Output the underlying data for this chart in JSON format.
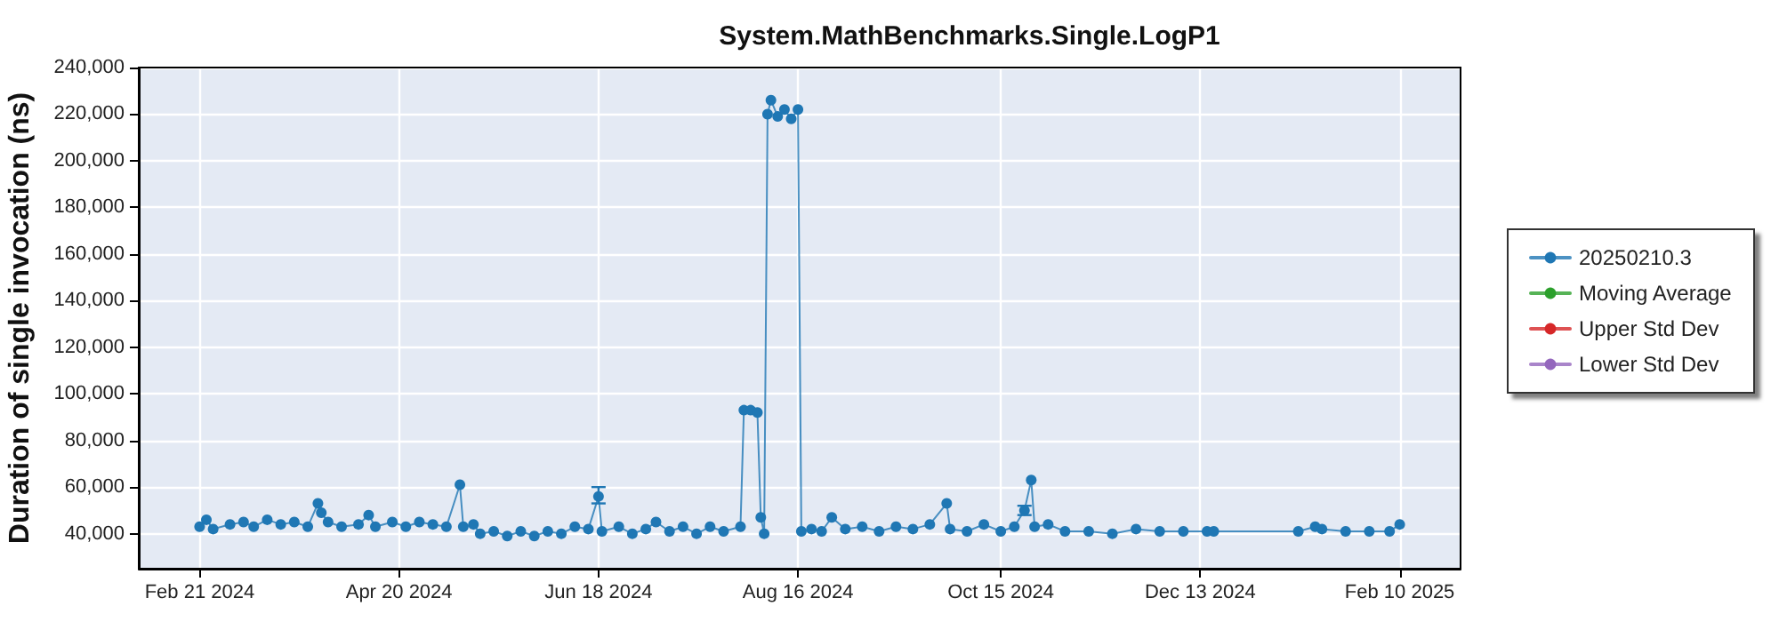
{
  "chart_data": {
    "type": "line",
    "title": "System.MathBenchmarks.Single.LogP1",
    "ylabel": "Duration of single invocation (ns)",
    "x": [
      "2024-02-21",
      "2024-02-23",
      "2024-02-25",
      "2024-03-01",
      "2024-03-05",
      "2024-03-08",
      "2024-03-12",
      "2024-03-16",
      "2024-03-20",
      "2024-03-24",
      "2024-03-27",
      "2024-03-28",
      "2024-03-30",
      "2024-04-03",
      "2024-04-08",
      "2024-04-11",
      "2024-04-13",
      "2024-04-18",
      "2024-04-22",
      "2024-04-26",
      "2024-04-30",
      "2024-05-04",
      "2024-05-08",
      "2024-05-09",
      "2024-05-12",
      "2024-05-14",
      "2024-05-18",
      "2024-05-22",
      "2024-05-26",
      "2024-05-30",
      "2024-06-03",
      "2024-06-07",
      "2024-06-11",
      "2024-06-15",
      "2024-06-18",
      "2024-06-19",
      "2024-06-24",
      "2024-06-28",
      "2024-07-02",
      "2024-07-05",
      "2024-07-09",
      "2024-07-13",
      "2024-07-17",
      "2024-07-21",
      "2024-07-25",
      "2024-07-30",
      "2024-07-31",
      "2024-08-02",
      "2024-08-04",
      "2024-08-05",
      "2024-08-06",
      "2024-08-07",
      "2024-08-08",
      "2024-08-10",
      "2024-08-12",
      "2024-08-14",
      "2024-08-16",
      "2024-08-17",
      "2024-08-20",
      "2024-08-23",
      "2024-08-26",
      "2024-08-30",
      "2024-09-04",
      "2024-09-09",
      "2024-09-14",
      "2024-09-19",
      "2024-09-24",
      "2024-09-29",
      "2024-09-30",
      "2024-10-05",
      "2024-10-10",
      "2024-10-15",
      "2024-10-19",
      "2024-10-22",
      "2024-10-24",
      "2024-10-25",
      "2024-10-29",
      "2024-11-03",
      "2024-11-10",
      "2024-11-17",
      "2024-11-24",
      "2024-12-01",
      "2024-12-08",
      "2024-12-15",
      "2024-12-17",
      "2025-01-11",
      "2025-01-16",
      "2025-01-18",
      "2025-01-25",
      "2025-02-01",
      "2025-02-07",
      "2025-02-10"
    ],
    "series": [
      {
        "name": "20250210.3",
        "color": "#1f77b4",
        "values": [
          43000,
          46000,
          42000,
          44000,
          45000,
          43000,
          46000,
          44000,
          45000,
          43000,
          53000,
          49000,
          45000,
          43000,
          44000,
          48000,
          43000,
          45000,
          43000,
          45000,
          44000,
          43000,
          61000,
          43000,
          44000,
          40000,
          41000,
          39000,
          41000,
          39000,
          41000,
          40000,
          43000,
          42000,
          56000,
          41000,
          43000,
          40000,
          42000,
          45000,
          41000,
          43000,
          40000,
          43000,
          41000,
          43000,
          93000,
          93000,
          92000,
          47000,
          40000,
          220000,
          226000,
          219000,
          222000,
          218000,
          222000,
          41000,
          42000,
          41000,
          47000,
          42000,
          43000,
          41000,
          43000,
          42000,
          44000,
          53000,
          42000,
          41000,
          44000,
          41000,
          43000,
          50000,
          63000,
          43000,
          44000,
          41000,
          41000,
          40000,
          42000,
          41000,
          41000,
          41000,
          41000,
          41000,
          43000,
          42000,
          41000,
          41000,
          41000,
          44000
        ],
        "errors": [
          null,
          null,
          null,
          null,
          null,
          null,
          null,
          null,
          null,
          null,
          null,
          null,
          null,
          null,
          null,
          null,
          null,
          null,
          null,
          null,
          null,
          null,
          null,
          null,
          null,
          null,
          null,
          null,
          null,
          null,
          null,
          null,
          null,
          null,
          [
            53000,
            60000
          ],
          null,
          null,
          null,
          null,
          null,
          null,
          null,
          null,
          null,
          null,
          null,
          null,
          null,
          null,
          null,
          null,
          null,
          null,
          null,
          null,
          null,
          null,
          null,
          null,
          null,
          null,
          null,
          null,
          null,
          null,
          null,
          null,
          null,
          null,
          null,
          null,
          null,
          null,
          [
            48000,
            52000
          ],
          null,
          null,
          null,
          null,
          null,
          null,
          null,
          null,
          null,
          null,
          null,
          null,
          null,
          null,
          null,
          null,
          null,
          null
        ]
      },
      {
        "name": "Moving Average",
        "color": "#2ca02c",
        "values": [
          null,
          null,
          null,
          null,
          null,
          null,
          null,
          null,
          null,
          null,
          null,
          null,
          null,
          null,
          null,
          null,
          null,
          null,
          null,
          null,
          null,
          null,
          null,
          null,
          null,
          null,
          null,
          null,
          null,
          null,
          null,
          null,
          null,
          null,
          null,
          null,
          null,
          null,
          null,
          null,
          null,
          null,
          null,
          null,
          null,
          null,
          null,
          null,
          null,
          null,
          null,
          null,
          null,
          null,
          null,
          null,
          null,
          null,
          null,
          null,
          null,
          null,
          null,
          null,
          null,
          null,
          null,
          null,
          null,
          null,
          null,
          null,
          null,
          null,
          null,
          null,
          null,
          null,
          null,
          null,
          null,
          null,
          null,
          null,
          null,
          null,
          null,
          null,
          null,
          null,
          null,
          null
        ]
      },
      {
        "name": "Upper Std Dev",
        "color": "#d62728",
        "values": [
          null,
          null,
          null,
          null,
          null,
          null,
          null,
          null,
          null,
          null,
          null,
          null,
          null,
          null,
          null,
          null,
          null,
          null,
          null,
          null,
          null,
          null,
          null,
          null,
          null,
          null,
          null,
          null,
          null,
          null,
          null,
          null,
          null,
          null,
          null,
          null,
          null,
          null,
          null,
          null,
          null,
          null,
          null,
          null,
          null,
          null,
          null,
          null,
          null,
          null,
          null,
          null,
          null,
          null,
          null,
          null,
          null,
          null,
          null,
          null,
          null,
          null,
          null,
          null,
          null,
          null,
          null,
          null,
          null,
          null,
          null,
          null,
          null,
          null,
          null,
          null,
          null,
          null,
          null,
          null,
          null,
          null,
          null,
          null,
          null,
          null,
          null,
          null,
          null,
          null,
          null,
          null
        ]
      },
      {
        "name": "Lower Std Dev",
        "color": "#9467bd",
        "values": [
          null,
          null,
          null,
          null,
          null,
          null,
          null,
          null,
          null,
          null,
          null,
          null,
          null,
          null,
          null,
          null,
          null,
          null,
          null,
          null,
          null,
          null,
          null,
          null,
          null,
          null,
          null,
          null,
          null,
          null,
          null,
          null,
          null,
          null,
          null,
          null,
          null,
          null,
          null,
          null,
          null,
          null,
          null,
          null,
          null,
          null,
          null,
          null,
          null,
          null,
          null,
          null,
          null,
          null,
          null,
          null,
          null,
          null,
          null,
          null,
          null,
          null,
          null,
          null,
          null,
          null,
          null,
          null,
          null,
          null,
          null,
          null,
          null,
          null,
          null,
          null,
          null,
          null,
          null,
          null,
          null,
          null,
          null,
          null,
          null,
          null,
          null,
          null,
          null,
          null,
          null,
          null
        ]
      }
    ],
    "xlim": [
      "2024-02-03",
      "2025-02-28"
    ],
    "xticks": [
      {
        "value": "2024-02-21",
        "label": "Feb 21 2024"
      },
      {
        "value": "2024-04-20",
        "label": "Apr 20 2024"
      },
      {
        "value": "2024-06-18",
        "label": "Jun 18 2024"
      },
      {
        "value": "2024-08-16",
        "label": "Aug 16 2024"
      },
      {
        "value": "2024-10-15",
        "label": "Oct 15 2024"
      },
      {
        "value": "2024-12-13",
        "label": "Dec 13 2024"
      },
      {
        "value": "2025-02-10",
        "label": "Feb 10 2025"
      }
    ],
    "ylim": [
      25000,
      240000
    ],
    "yticks": [
      {
        "value": 40000,
        "label": "40,000"
      },
      {
        "value": 60000,
        "label": "60,000"
      },
      {
        "value": 80000,
        "label": "80,000"
      },
      {
        "value": 100000,
        "label": "100,000"
      },
      {
        "value": 120000,
        "label": "120,000"
      },
      {
        "value": 140000,
        "label": "140,000"
      },
      {
        "value": 160000,
        "label": "160,000"
      },
      {
        "value": 180000,
        "label": "180,000"
      },
      {
        "value": 200000,
        "label": "200,000"
      },
      {
        "value": 220000,
        "label": "220,000"
      },
      {
        "value": 240000,
        "label": "240,000"
      }
    ],
    "grid": true,
    "legend": "right",
    "marker": "circle",
    "line_style": "solid"
  }
}
